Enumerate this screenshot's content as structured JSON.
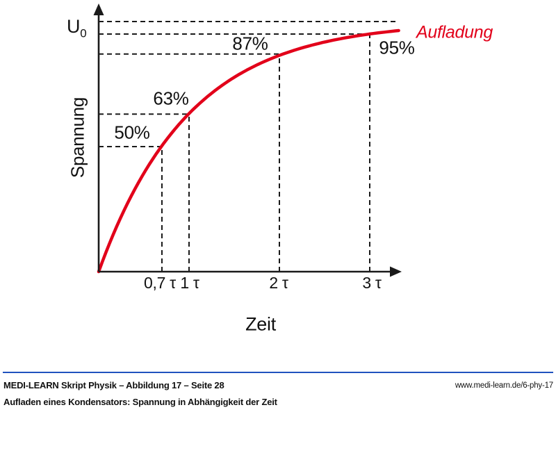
{
  "chart_data": {
    "type": "line",
    "curve_type": "exponential-saturation",
    "curve_label": "Aufladung",
    "xlabel": "Zeit",
    "ylabel": "Spannung",
    "y_asymptote_label": "U",
    "y_asymptote_sub": "0",
    "asymptote_percent": 100,
    "x_unit": "τ",
    "t_max": 3.34,
    "x_ticks_tau": [
      0.7,
      1,
      2,
      3
    ],
    "points": [
      {
        "t": 0.7,
        "tick": "0,7 τ",
        "percent": 50,
        "label": "50%"
      },
      {
        "t": 1,
        "tick": "1 τ",
        "percent": 63,
        "label": "63%"
      },
      {
        "t": 2,
        "tick": "2 τ",
        "percent": 87,
        "label": "87%"
      },
      {
        "t": 3,
        "tick": "3 τ",
        "percent": 95,
        "label": "95%"
      }
    ],
    "colors": {
      "curve": "#e2001a",
      "dashed": "#1a1a1a",
      "axis": "#1a1a1a"
    },
    "grid": false,
    "legend_position": "right-of-curve-end"
  },
  "footer": {
    "source_line": "MEDI-LEARN Skript Physik – Abbildung 17 – Seite 28",
    "url": "www.medi-learn.de/6-phy-17",
    "caption": "Aufladen eines Kondensators: Spannung in Abhängigkeit der Zeit",
    "rule_color": "#2052be",
    "text_color": "#111111"
  }
}
